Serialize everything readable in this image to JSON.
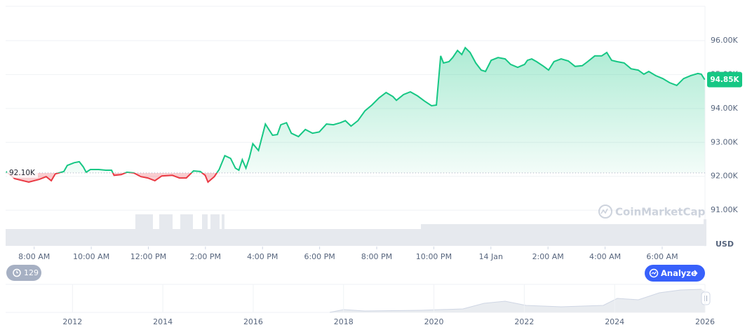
{
  "chart_data": {
    "type": "line",
    "x": [
      0.02,
      0.32,
      0.81,
      1.18,
      1.42,
      1.6,
      1.74,
      2.04,
      2.16,
      2.4,
      2.58,
      2.72,
      2.82,
      2.97,
      3.26,
      3.51,
      3.71,
      3.8,
      4.05,
      4.25,
      4.49,
      4.74,
      4.98,
      5.23,
      5.47,
      5.84,
      6.09,
      6.33,
      6.58,
      6.82,
      6.99,
      7.09,
      7.31,
      7.48,
      7.68,
      7.88,
      8.05,
      8.17,
      8.29,
      8.42,
      8.54,
      8.66,
      8.86,
      9.1,
      9.35,
      9.52,
      9.64,
      9.84,
      10.01,
      10.26,
      10.5,
      10.75,
      10.99,
      11.24,
      11.48,
      11.73,
      11.9,
      12.1,
      12.34,
      12.59,
      12.83,
      13.08,
      13.33,
      13.57,
      13.69,
      13.94,
      14.18,
      14.43,
      14.67,
      14.92,
      15.09,
      15.24,
      15.34,
      15.53,
      15.66,
      15.83,
      15.98,
      16.1,
      16.27,
      16.47,
      16.66,
      16.81,
      17.01,
      17.25,
      17.5,
      17.69,
      17.94,
      18.18,
      18.28,
      18.43,
      18.6,
      18.85,
      19.02,
      19.21,
      19.46,
      19.71,
      19.95,
      20.2,
      20.39,
      20.64,
      20.88,
      21.06,
      21.23,
      21.42,
      21.67,
      21.91,
      22.16,
      22.36,
      22.53,
      22.77,
      23.02,
      23.26,
      23.51,
      23.75,
      24.0,
      24.25,
      24.37,
      24.49
    ],
    "series": [
      {
        "name": "Price",
        "color": "#16c784",
        "color_below": "#ea3943",
        "values": [
          92.14,
          91.93,
          91.83,
          91.91,
          91.99,
          91.87,
          92.07,
          92.14,
          92.32,
          92.4,
          92.43,
          92.28,
          92.12,
          92.2,
          92.2,
          92.18,
          92.18,
          92.03,
          92.05,
          92.12,
          92.1,
          91.99,
          91.95,
          91.87,
          92.01,
          92.03,
          91.95,
          91.95,
          92.16,
          92.14,
          92.03,
          91.83,
          91.99,
          92.2,
          92.61,
          92.53,
          92.24,
          92.18,
          92.49,
          92.24,
          92.55,
          92.96,
          92.76,
          93.54,
          93.21,
          93.23,
          93.52,
          93.58,
          93.27,
          93.17,
          93.38,
          93.27,
          93.31,
          93.54,
          93.52,
          93.58,
          93.64,
          93.48,
          93.64,
          93.93,
          94.1,
          94.31,
          94.47,
          94.35,
          94.24,
          94.41,
          94.49,
          94.37,
          94.22,
          94.08,
          94.1,
          95.55,
          95.34,
          95.38,
          95.5,
          95.71,
          95.59,
          95.79,
          95.65,
          95.34,
          95.13,
          95.09,
          95.42,
          95.5,
          95.46,
          95.3,
          95.21,
          95.3,
          95.42,
          95.46,
          95.38,
          95.24,
          95.13,
          95.38,
          95.46,
          95.4,
          95.24,
          95.26,
          95.38,
          95.55,
          95.55,
          95.65,
          95.42,
          95.38,
          95.34,
          95.17,
          95.13,
          95.01,
          95.09,
          94.97,
          94.88,
          94.76,
          94.68,
          94.88,
          94.97,
          95.03,
          95.01,
          94.85
        ]
      }
    ],
    "baseline": 92.1,
    "baseline_label": "92.10K",
    "last_value_label": "94.85K",
    "xlim": [
      0,
      24.5
    ],
    "xticks": [
      {
        "value": 1,
        "label": "8:00 AM"
      },
      {
        "value": 3,
        "label": "10:00 AM"
      },
      {
        "value": 5,
        "label": "12:00 PM"
      },
      {
        "value": 7,
        "label": "2:00 PM"
      },
      {
        "value": 9,
        "label": "4:00 PM"
      },
      {
        "value": 11,
        "label": "6:00 PM"
      },
      {
        "value": 13,
        "label": "8:00 PM"
      },
      {
        "value": 15,
        "label": "10:00 PM"
      },
      {
        "value": 17,
        "label": "14 Jan"
      },
      {
        "value": 19,
        "label": "2:00 AM"
      },
      {
        "value": 21,
        "label": "4:00 AM"
      },
      {
        "value": 23,
        "label": "6:00 AM"
      }
    ],
    "ylim": [
      89.93,
      96.99
    ],
    "yticks": [
      {
        "value": 91,
        "label": "91.00K"
      },
      {
        "value": 92,
        "label": "92.00K"
      },
      {
        "value": 93,
        "label": "93.00K"
      },
      {
        "value": 94,
        "label": "94.00K"
      },
      {
        "value": 95,
        "label": "95.00K"
      },
      {
        "value": 96,
        "label": "96.00K"
      }
    ],
    "grid": true,
    "currency": "USD",
    "navigator": {
      "xlim": [
        2010.52,
        2026
      ],
      "xticks": [
        2012,
        2014,
        2016,
        2018,
        2020,
        2022,
        2024,
        2026
      ]
    }
  },
  "watermark": "CoinMarketCap",
  "badge": "129",
  "analyze_button": "Analyze"
}
